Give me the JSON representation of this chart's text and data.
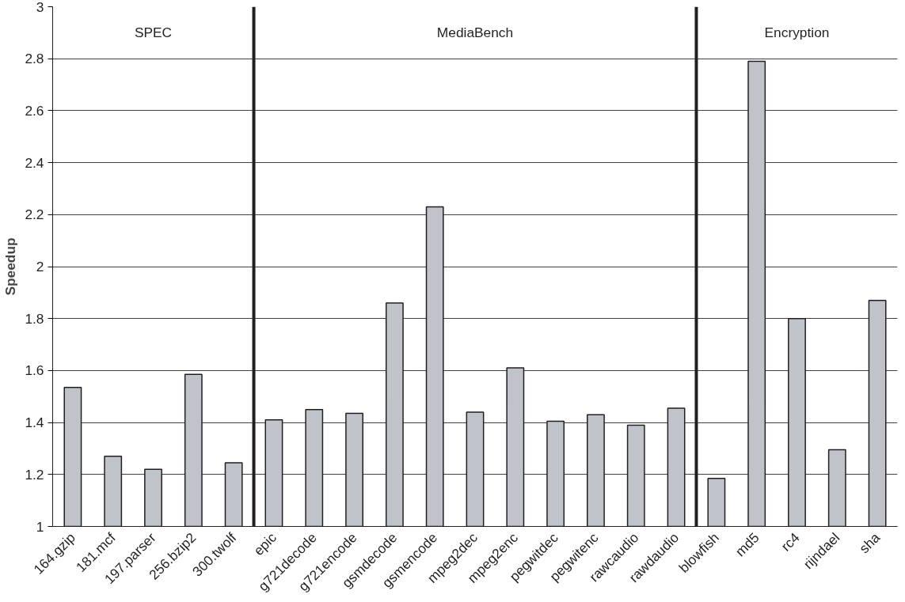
{
  "chart_data": {
    "type": "bar",
    "ylabel": "Speedup",
    "categories": [
      "164.gzip",
      "181.mcf",
      "197.parser",
      "256.bzip2",
      "300.twolf",
      "epic",
      "g721decode",
      "g721encode",
      "gsmdecode",
      "gsmencode",
      "mpeg2dec",
      "mpeg2enc",
      "pegwitdec",
      "pegwitenc",
      "rawcaudio",
      "rawdaudio",
      "blowfish",
      "md5",
      "rc4",
      "rijndael",
      "sha"
    ],
    "values": [
      1.535,
      1.27,
      1.22,
      1.585,
      1.245,
      1.41,
      1.45,
      1.435,
      1.86,
      2.23,
      1.44,
      1.61,
      1.405,
      1.43,
      1.39,
      1.455,
      1.185,
      2.79,
      1.8,
      1.295,
      1.87
    ],
    "color": "#c0c3ca",
    "ylim": [
      1,
      3
    ],
    "yticks": [
      1,
      1.2,
      1.4,
      1.6,
      1.8,
      2,
      2.2,
      2.4,
      2.6,
      2.8,
      3
    ],
    "grid": "y",
    "annotations": [
      "SPEC",
      "MediaBench",
      "Encryption"
    ]
  }
}
